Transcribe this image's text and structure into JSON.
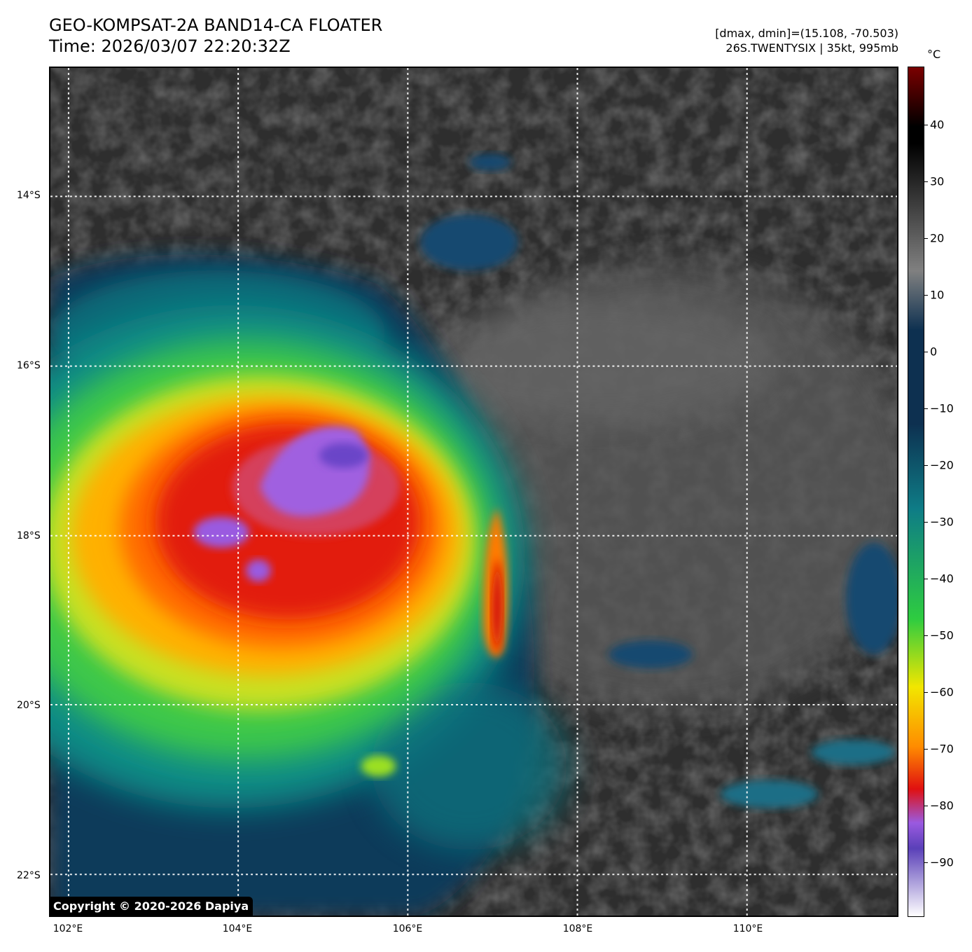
{
  "header": {
    "title_line1": "GEO-KOMPSAT-2A BAND14-CA FLOATER",
    "title_line2": "Time: 2026/03/07 22:20:32Z",
    "info_line1": "[dmax, dmin]=(15.108, -70.503)",
    "info_line2": "26S.TWENTYSIX | 35kt, 995mb"
  },
  "map": {
    "lat_labels": [
      "14°S",
      "16°S",
      "18°S",
      "20°S",
      "22°S"
    ],
    "lon_labels": [
      "102°E",
      "104°E",
      "106°E",
      "108°E",
      "110°E"
    ],
    "copyright": "Copyright © 2020-2026 Dapiya"
  },
  "colorbar": {
    "unit": "°C",
    "ticks": [
      "40",
      "30",
      "20",
      "10",
      "0",
      "−10",
      "−20",
      "−30",
      "−40",
      "−50",
      "−60",
      "−70",
      "−80",
      "−90"
    ],
    "colors": {
      "warm_max": "#7a0000",
      "black": "#000000",
      "gray": "#808080",
      "dark_blue": "#0d3050",
      "teal": "#0e7c86",
      "green": "#2ecc40",
      "yellow": "#f2e600",
      "orange": "#ff8c00",
      "red": "#e01010",
      "purple": "#9a5ae0",
      "white": "#ffffff"
    }
  }
}
